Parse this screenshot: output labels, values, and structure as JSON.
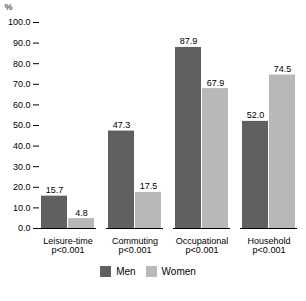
{
  "chart_data": {
    "type": "bar",
    "ylabel": "%",
    "categories": [
      "Leisure-time\np<0.001",
      "Commuting\np<0.001",
      "Occupational\np<0.001",
      "Household\np<0.001"
    ],
    "series": [
      {
        "name": "Men",
        "color": "#606060",
        "values": [
          15.7,
          47.3,
          87.9,
          52.0
        ],
        "value_labels": [
          "15.7",
          "47.3",
          "87.9",
          "52.0"
        ]
      },
      {
        "name": "Women",
        "color": "#b8b8b8",
        "values": [
          4.8,
          17.5,
          67.9,
          74.5
        ],
        "value_labels": [
          "4.8",
          "17.5",
          "67.9",
          "74.5"
        ]
      }
    ],
    "ylim": [
      0,
      100
    ],
    "yticks": [
      {
        "value": 0,
        "label": "0.0"
      },
      {
        "value": 10,
        "label": "10.0"
      },
      {
        "value": 20,
        "label": "20.0"
      },
      {
        "value": 30,
        "label": "30.0"
      },
      {
        "value": 40,
        "label": "40.0"
      },
      {
        "value": 50,
        "label": "50.0"
      },
      {
        "value": 60,
        "label": "60.0"
      },
      {
        "value": 70,
        "label": "70.0"
      },
      {
        "value": 80,
        "label": "80.0"
      },
      {
        "value": 90,
        "label": "90.0"
      },
      {
        "value": 100,
        "label": "100.0"
      }
    ],
    "data_labels": true,
    "grid": false,
    "legend": "bottom"
  }
}
